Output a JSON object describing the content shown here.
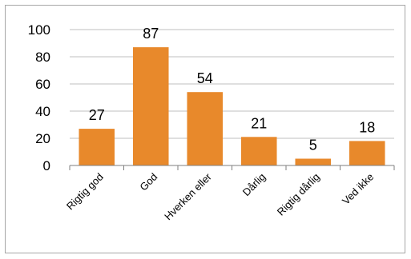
{
  "chart_data": {
    "type": "bar",
    "categories": [
      "Rigtig god",
      "God",
      "Hverken eller",
      "Dårlig",
      "Rigtig dårlig",
      "Ved ikke"
    ],
    "values": [
      27,
      87,
      54,
      21,
      5,
      18
    ],
    "data_labels": [
      "27",
      "87",
      "54",
      "21",
      "5",
      "18"
    ],
    "y_ticks": [
      "0",
      "20",
      "40",
      "60",
      "80",
      "100"
    ],
    "ylim": [
      0,
      100
    ],
    "grid": true,
    "legend": "none",
    "colors": {
      "bar": "#e8892b",
      "grid": "#bfbfbf",
      "axis": "#7f7f7f",
      "frame": "#a6a6a6"
    }
  }
}
